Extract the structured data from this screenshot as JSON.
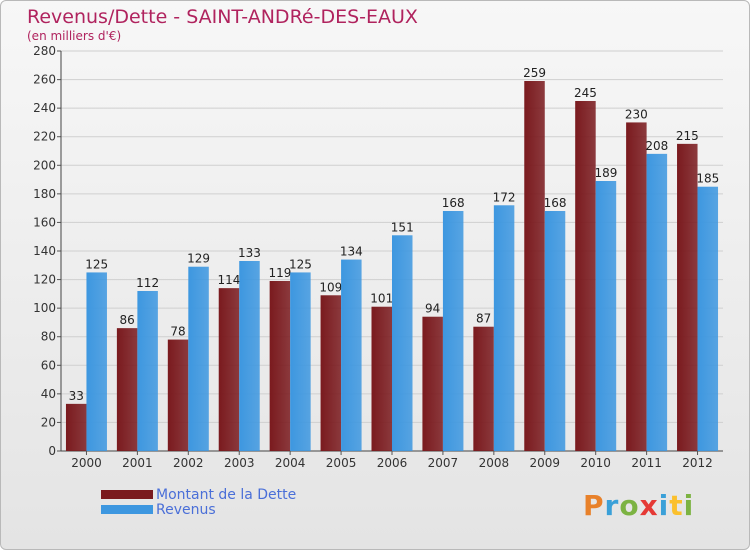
{
  "header": {
    "title": "Revenus/Dette - SAINT-ANDRé-DES-EAUX",
    "subtitle": "(en milliers d'€)"
  },
  "chart_data": {
    "type": "bar",
    "title": "Revenus/Dette - SAINT-ANDRé-DES-EAUX",
    "subtitle": "(en milliers d'€)",
    "categories": [
      "2000",
      "2001",
      "2002",
      "2003",
      "2004",
      "2005",
      "2006",
      "2007",
      "2008",
      "2009",
      "2010",
      "2011",
      "2012"
    ],
    "series": [
      {
        "name": "Montant de la Dette",
        "color": "#7a1a1e",
        "values": [
          33,
          86,
          78,
          114,
          119,
          109,
          101,
          94,
          87,
          259,
          245,
          230,
          215
        ]
      },
      {
        "name": "Revenus",
        "color": "#3d97e0",
        "values": [
          125,
          112,
          129,
          133,
          125,
          134,
          151,
          168,
          172,
          168,
          189,
          208,
          185
        ]
      }
    ],
    "ylim": [
      0,
      280
    ],
    "yticks": [
      0,
      20,
      40,
      60,
      80,
      100,
      120,
      140,
      160,
      180,
      200,
      220,
      240,
      260,
      280
    ],
    "grid": true,
    "legend_position": "bottom-left"
  },
  "logo": {
    "letters": [
      "P",
      "r",
      "o",
      "x",
      "i",
      "t",
      "i"
    ],
    "colors": [
      "#e8812a",
      "#3aa0d8",
      "#7cb342",
      "#e53935",
      "#3aa0d8",
      "#fbc02d",
      "#7cb342"
    ]
  }
}
